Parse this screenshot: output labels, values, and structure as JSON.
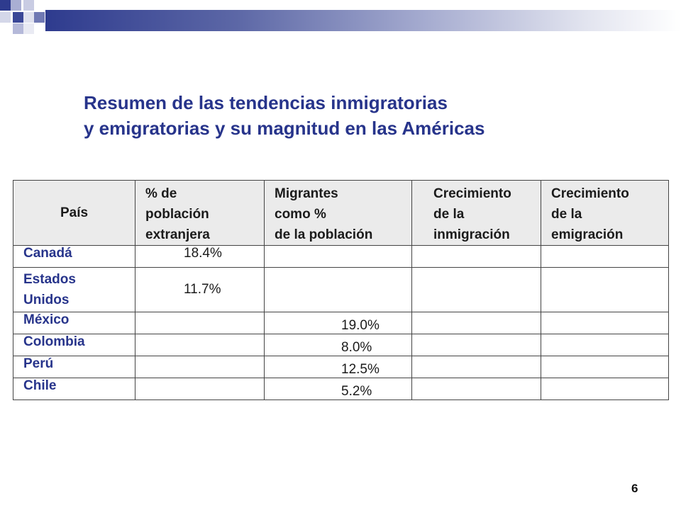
{
  "slide": {
    "title_line1": "Resumen de las tendencias inmigratorias",
    "title_line2": "y emigratorias y su magnitud en las Américas",
    "page_number": "6"
  },
  "table": {
    "headers": [
      "País",
      "% de población extranjera",
      "Migrantes como % de la población",
      "Crecimiento de la inmigración",
      "Crecimiento de la emigración"
    ],
    "header_lines": {
      "col2": [
        "% de",
        "población",
        "extranjera"
      ],
      "col3": [
        "Migrantes",
        "como %",
        "de la población"
      ],
      "col4": [
        "Crecimiento",
        "de la",
        "inmigración"
      ],
      "col5": [
        "Crecimiento",
        "de la",
        "emigración"
      ]
    },
    "rows": [
      {
        "country": "Canadá",
        "foreign_pct": "18.4%",
        "migrants_pct": "",
        "immigration_growth": "",
        "emigration_growth": ""
      },
      {
        "country_line1": "Estados",
        "country_line2": "Unidos",
        "foreign_pct": "11.7%",
        "migrants_pct": "",
        "immigration_growth": "",
        "emigration_growth": ""
      },
      {
        "country": "México",
        "foreign_pct": "",
        "migrants_pct": "19.0%",
        "immigration_growth": "",
        "emigration_growth": ""
      },
      {
        "country": "Colombia",
        "foreign_pct": "",
        "migrants_pct": "8.0%",
        "immigration_growth": "",
        "emigration_growth": ""
      },
      {
        "country": "Perú",
        "foreign_pct": "",
        "migrants_pct": "12.5%",
        "immigration_growth": "",
        "emigration_growth": ""
      },
      {
        "country": "Chile",
        "foreign_pct": "",
        "migrants_pct": "5.2%",
        "immigration_growth": "",
        "emigration_growth": ""
      }
    ]
  }
}
